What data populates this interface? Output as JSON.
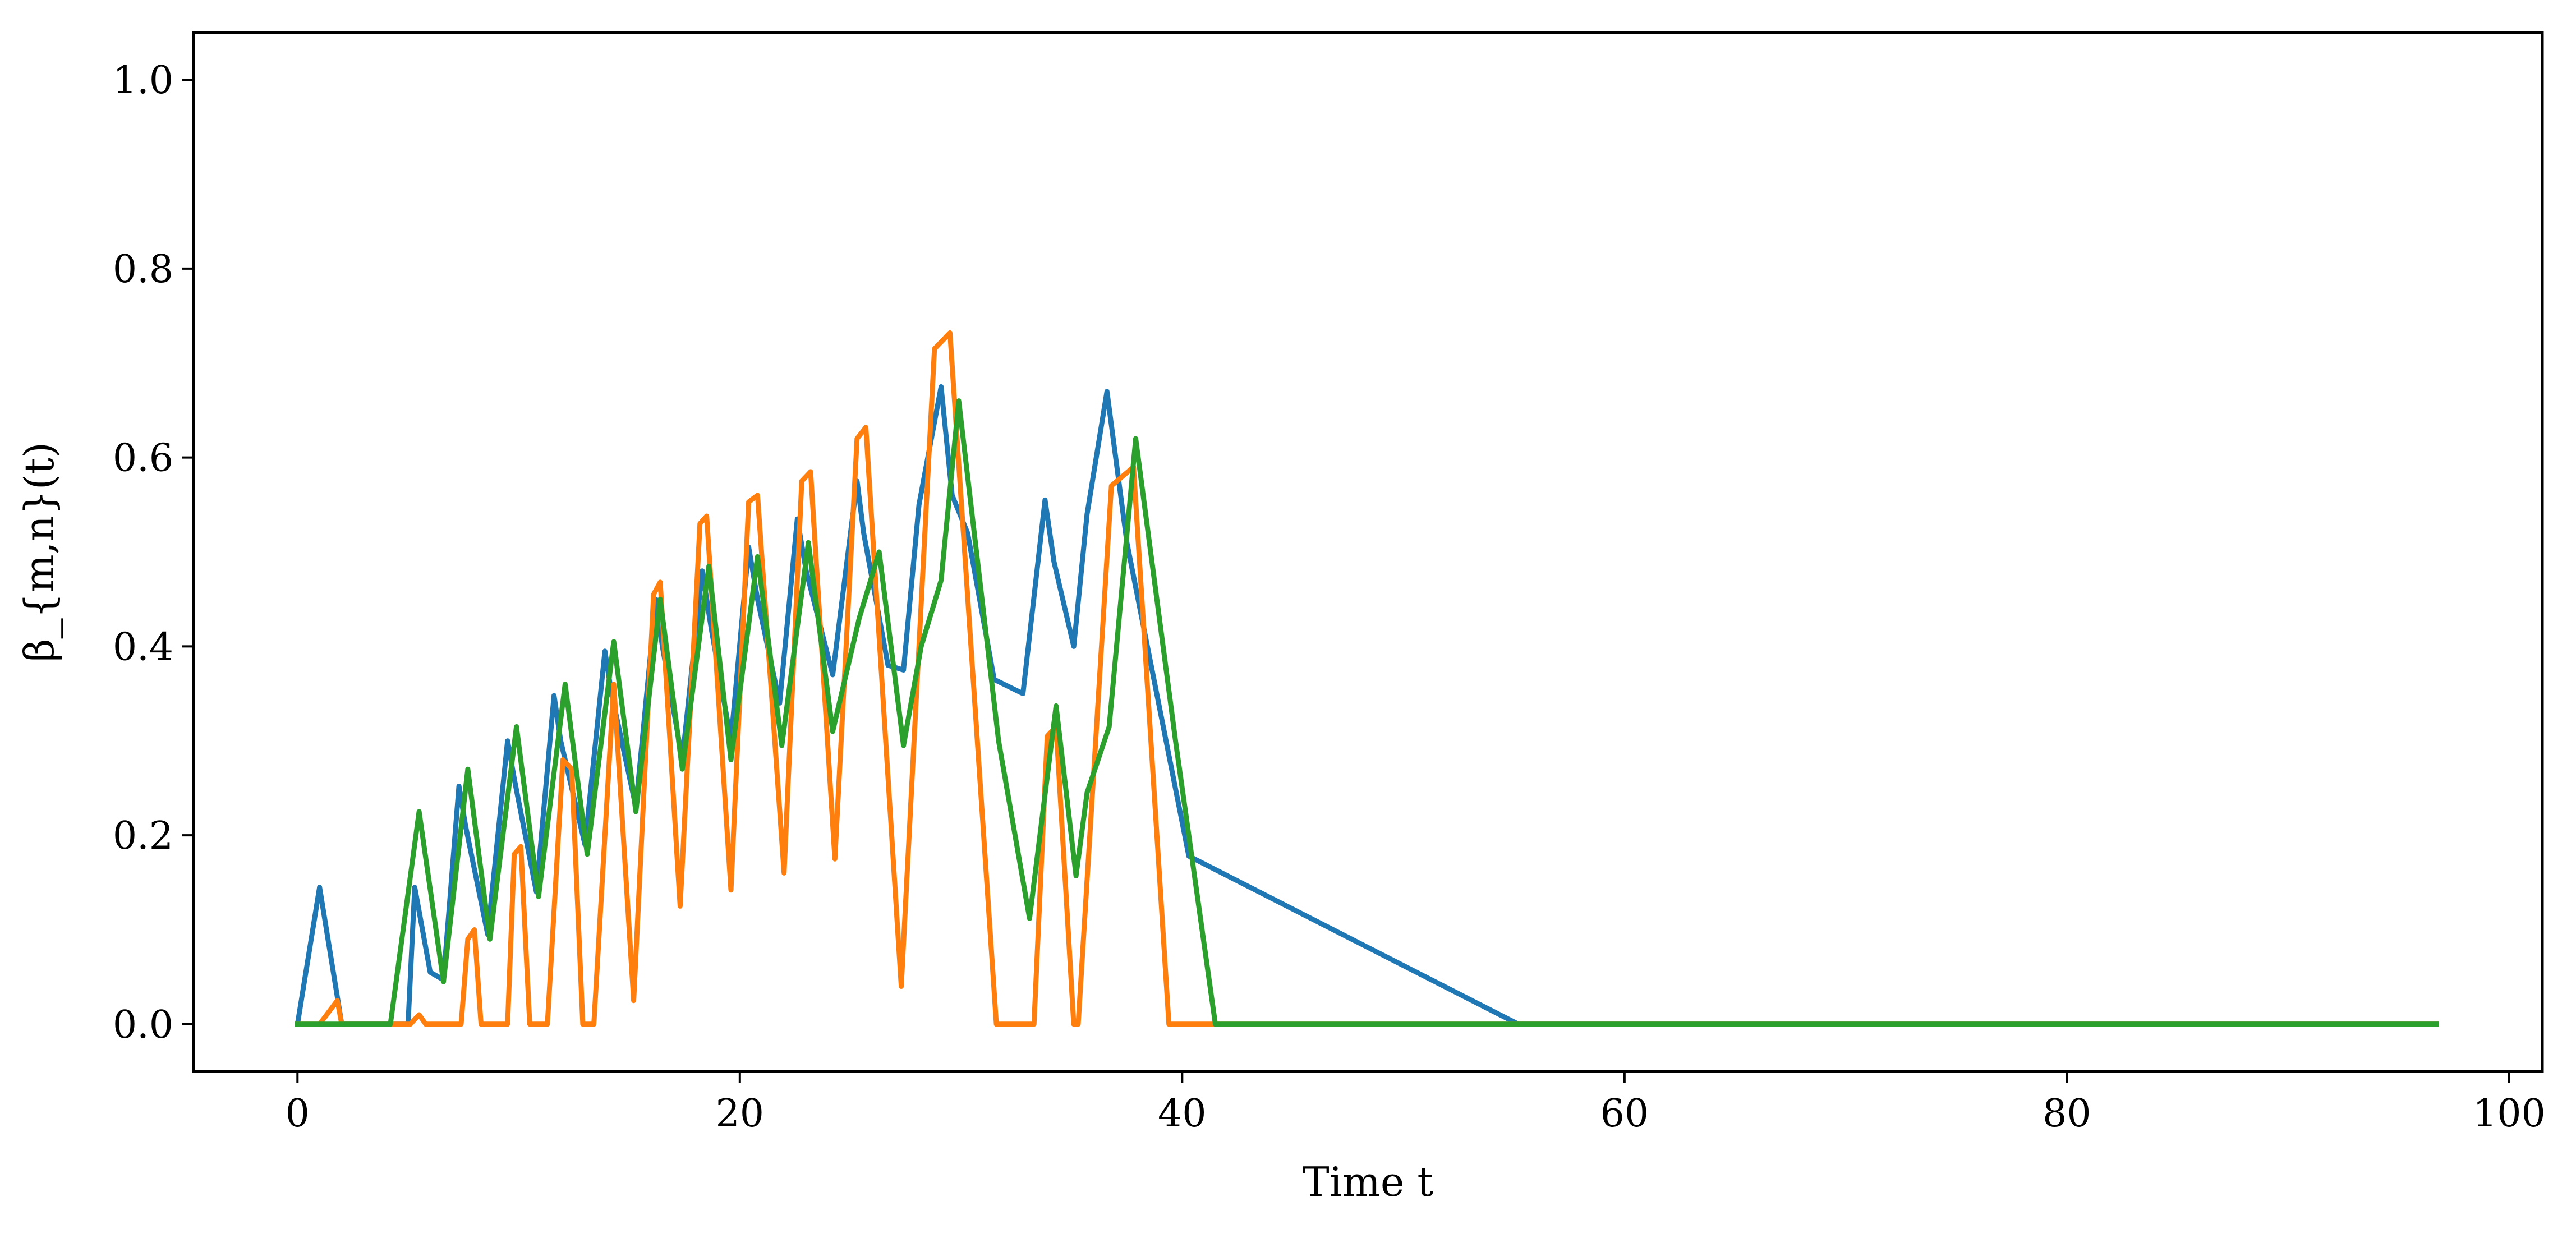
{
  "chart_data": {
    "type": "line",
    "title": "",
    "xlabel": "Time t",
    "ylabel": "β_{m,n}(t)",
    "xlim": [
      -4.7,
      101.5
    ],
    "ylim": [
      -0.05,
      1.05
    ],
    "xticks": [
      0,
      20,
      40,
      60,
      80,
      100
    ],
    "yticks": [
      0.0,
      0.2,
      0.4,
      0.6,
      0.8,
      1.0
    ],
    "xtick_labels": [
      "0",
      "20",
      "40",
      "60",
      "80",
      "100"
    ],
    "ytick_labels": [
      "0.0",
      "0.2",
      "0.4",
      "0.6",
      "0.8",
      "1.0"
    ],
    "grid": false,
    "legend": "none",
    "series": [
      {
        "color": "#1f77b4",
        "points": [
          [
            0,
            0
          ],
          [
            1,
            0.145
          ],
          [
            2,
            0
          ],
          [
            3,
            0
          ],
          [
            4,
            0
          ],
          [
            5,
            0
          ],
          [
            5.3,
            0.145
          ],
          [
            6,
            0.055
          ],
          [
            6.6,
            0.047
          ],
          [
            7.3,
            0.252
          ],
          [
            7.6,
            0.21
          ],
          [
            8.6,
            0.095
          ],
          [
            9.5,
            0.3
          ],
          [
            9.8,
            0.26
          ],
          [
            10.8,
            0.14
          ],
          [
            11.6,
            0.348
          ],
          [
            11.9,
            0.3
          ],
          [
            13,
            0.19
          ],
          [
            13.9,
            0.395
          ],
          [
            14.2,
            0.35
          ],
          [
            15.3,
            0.23
          ],
          [
            16.2,
            0.45
          ],
          [
            16.5,
            0.4
          ],
          [
            17.4,
            0.28
          ],
          [
            18.3,
            0.48
          ],
          [
            18.7,
            0.42
          ],
          [
            19.6,
            0.3
          ],
          [
            20.4,
            0.505
          ],
          [
            20.8,
            0.45
          ],
          [
            21.8,
            0.34
          ],
          [
            22.6,
            0.535
          ],
          [
            23,
            0.48
          ],
          [
            24.2,
            0.37
          ],
          [
            25.3,
            0.575
          ],
          [
            25.6,
            0.52
          ],
          [
            26.7,
            0.38
          ],
          [
            27.4,
            0.375
          ],
          [
            28.1,
            0.55
          ],
          [
            29.1,
            0.675
          ],
          [
            29.6,
            0.56
          ],
          [
            30.3,
            0.52
          ],
          [
            31.5,
            0.365
          ],
          [
            32.8,
            0.35
          ],
          [
            33.8,
            0.555
          ],
          [
            34.2,
            0.49
          ],
          [
            35.1,
            0.4
          ],
          [
            35.7,
            0.54
          ],
          [
            36.6,
            0.67
          ],
          [
            37.5,
            0.51
          ],
          [
            40.3,
            0.178
          ],
          [
            55.2,
            0.0
          ],
          [
            96.7,
            0.0
          ]
        ]
      },
      {
        "color": "#ff7f0e",
        "points": [
          [
            0,
            0
          ],
          [
            1,
            0
          ],
          [
            1.8,
            0.025
          ],
          [
            2,
            0
          ],
          [
            4,
            0
          ],
          [
            5.1,
            0
          ],
          [
            5.5,
            0.01
          ],
          [
            5.8,
            0
          ],
          [
            7.4,
            0
          ],
          [
            7.7,
            0.09
          ],
          [
            8,
            0.1
          ],
          [
            8.3,
            0
          ],
          [
            9.5,
            0
          ],
          [
            9.8,
            0.18
          ],
          [
            10.1,
            0.188
          ],
          [
            10.5,
            0
          ],
          [
            11.3,
            0
          ],
          [
            12,
            0.28
          ],
          [
            12.4,
            0.27
          ],
          [
            12.9,
            0
          ],
          [
            13.4,
            0
          ],
          [
            14.3,
            0.36
          ],
          [
            15.2,
            0.025
          ],
          [
            16.1,
            0.455
          ],
          [
            16.4,
            0.468
          ],
          [
            17.3,
            0.125
          ],
          [
            18.2,
            0.53
          ],
          [
            18.5,
            0.538
          ],
          [
            19.6,
            0.142
          ],
          [
            20.4,
            0.553
          ],
          [
            20.8,
            0.56
          ],
          [
            22,
            0.16
          ],
          [
            22.8,
            0.575
          ],
          [
            23.2,
            0.585
          ],
          [
            24.3,
            0.175
          ],
          [
            25.3,
            0.62
          ],
          [
            25.7,
            0.632
          ],
          [
            27.3,
            0.04
          ],
          [
            28.8,
            0.715
          ],
          [
            29.5,
            0.732
          ],
          [
            31.6,
            0.0
          ],
          [
            33.3,
            0.0
          ],
          [
            33.9,
            0.305
          ],
          [
            34.3,
            0.315
          ],
          [
            35.1,
            0.0
          ],
          [
            35.3,
            0.0
          ],
          [
            36.8,
            0.57
          ],
          [
            37.8,
            0.59
          ],
          [
            39.4,
            0.0
          ],
          [
            96.7,
            0.0
          ]
        ]
      },
      {
        "color": "#2ca02c",
        "points": [
          [
            0,
            0
          ],
          [
            4.2,
            0
          ],
          [
            5.5,
            0.225
          ],
          [
            6.6,
            0.045
          ],
          [
            7.7,
            0.27
          ],
          [
            8.7,
            0.09
          ],
          [
            9.9,
            0.315
          ],
          [
            10.9,
            0.135
          ],
          [
            12.1,
            0.36
          ],
          [
            13.1,
            0.18
          ],
          [
            14.3,
            0.405
          ],
          [
            15.3,
            0.225
          ],
          [
            16.4,
            0.45
          ],
          [
            17.4,
            0.27
          ],
          [
            18.6,
            0.485
          ],
          [
            19.6,
            0.28
          ],
          [
            20.8,
            0.495
          ],
          [
            21.9,
            0.295
          ],
          [
            23.1,
            0.51
          ],
          [
            24.2,
            0.31
          ],
          [
            25.4,
            0.43
          ],
          [
            26.3,
            0.5
          ],
          [
            27.4,
            0.295
          ],
          [
            28.2,
            0.4
          ],
          [
            29.1,
            0.47
          ],
          [
            29.9,
            0.66
          ],
          [
            31.7,
            0.3
          ],
          [
            33.1,
            0.112
          ],
          [
            34.3,
            0.337
          ],
          [
            35.2,
            0.157
          ],
          [
            35.7,
            0.245
          ],
          [
            36.7,
            0.315
          ],
          [
            37.9,
            0.62
          ],
          [
            39.7,
            0.3
          ],
          [
            41.5,
            0.0
          ],
          [
            96.7,
            0.0
          ]
        ]
      }
    ]
  }
}
